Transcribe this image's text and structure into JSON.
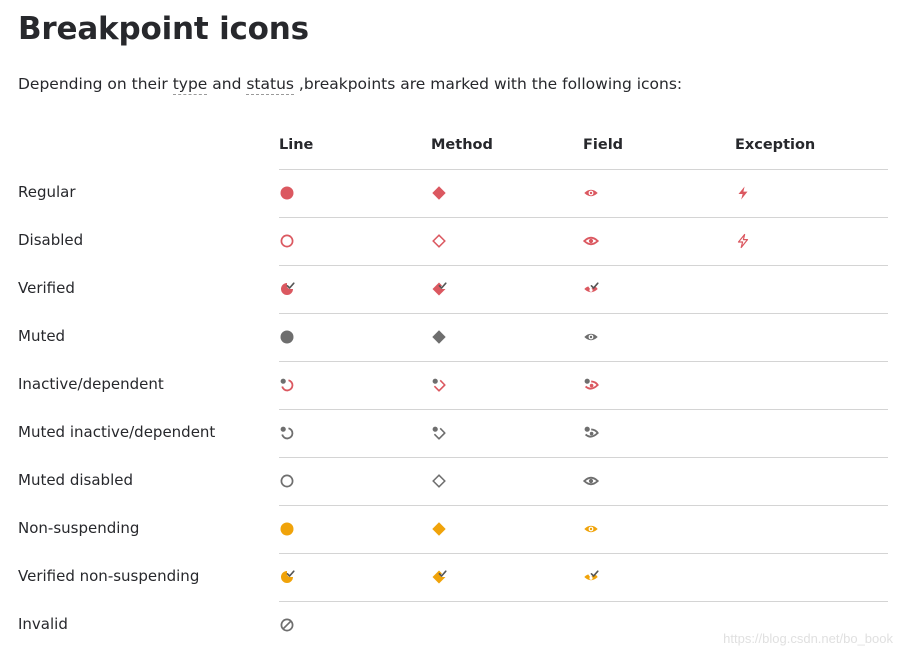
{
  "page": {
    "title": "Breakpoint icons",
    "intro": {
      "prefix": "Depending on their ",
      "term_type": "type",
      "middle": " and ",
      "term_status": "status",
      "suffix": " ,breakpoints are marked with the following icons:"
    }
  },
  "table": {
    "columns": [
      "Line",
      "Method",
      "Field",
      "Exception"
    ],
    "rows": [
      {
        "label": "Regular",
        "icons": [
          "line-regular-icon",
          "method-regular-icon",
          "field-regular-icon",
          "exception-regular-icon"
        ]
      },
      {
        "label": "Disabled",
        "icons": [
          "line-disabled-icon",
          "method-disabled-icon",
          "field-disabled-icon",
          "exception-disabled-icon"
        ]
      },
      {
        "label": "Verified",
        "icons": [
          "line-verified-icon",
          "method-verified-icon",
          "field-verified-icon",
          null
        ]
      },
      {
        "label": "Muted",
        "icons": [
          "line-muted-icon",
          "method-muted-icon",
          "field-muted-icon",
          null
        ]
      },
      {
        "label": "Inactive/dependent",
        "icons": [
          "line-inactive-dependent-icon",
          "method-inactive-dependent-icon",
          "field-inactive-dependent-icon",
          null
        ]
      },
      {
        "label": "Muted inactive/dependent",
        "icons": [
          "line-muted-inactive-dependent-icon",
          "method-muted-inactive-dependent-icon",
          "field-muted-inactive-dependent-icon",
          null
        ]
      },
      {
        "label": "Muted disabled",
        "icons": [
          "line-muted-disabled-icon",
          "method-muted-disabled-icon",
          "field-muted-disabled-icon",
          null
        ]
      },
      {
        "label": "Non-suspending",
        "icons": [
          "line-non-suspending-icon",
          "method-non-suspending-icon",
          "field-non-suspending-icon",
          null
        ]
      },
      {
        "label": "Verified non-suspending",
        "icons": [
          "line-verified-non-suspending-icon",
          "method-verified-non-suspending-icon",
          "field-verified-non-suspending-icon",
          null
        ]
      },
      {
        "label": "Invalid",
        "icons": [
          "line-invalid-icon",
          null,
          null,
          null
        ]
      }
    ]
  },
  "colors": {
    "regular": "#db5860",
    "muted": "#6e6e6e",
    "non_suspending": "#f0a30a",
    "check": "#555555"
  },
  "watermark": "https://blog.csdn.net/bo_book"
}
